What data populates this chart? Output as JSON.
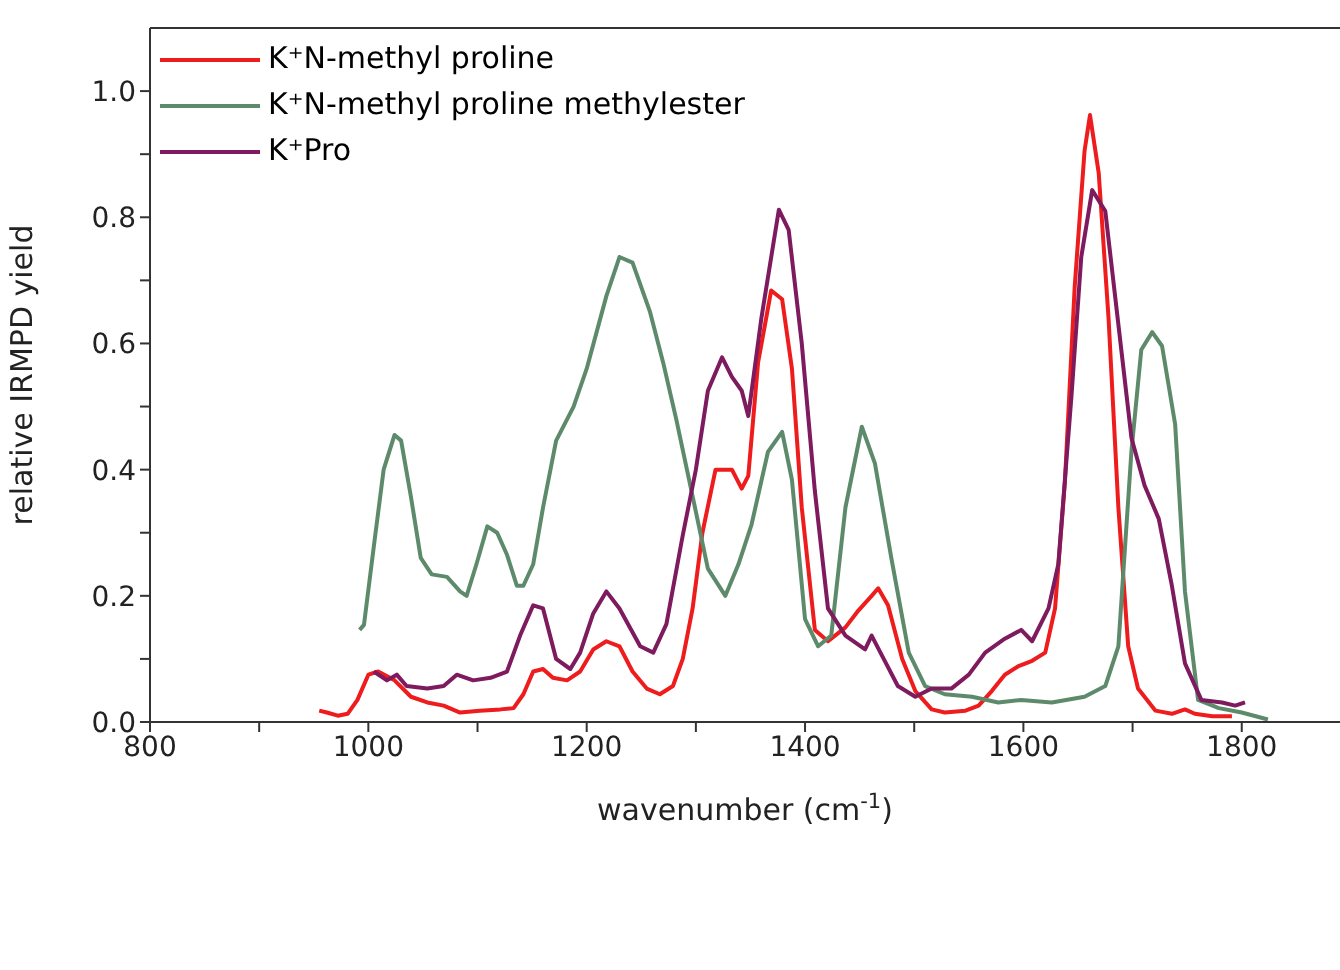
{
  "chart_data": {
    "type": "line",
    "xlabel": "wavenumber (cm$^{-1}$)",
    "ylabel": "relative IRMPD yield",
    "xlim": [
      800,
      1890
    ],
    "ylim": [
      0,
      1.1
    ],
    "xticks": [
      800,
      {
        "value": 900,
        "label": null
      },
      1000,
      {
        "value": 1100,
        "label": null
      },
      1200,
      {
        "value": 1300,
        "label": null
      },
      1400,
      {
        "value": 1500,
        "label": null
      },
      1600,
      {
        "value": 1700,
        "label": null
      },
      1800
    ],
    "yticks": [
      {
        "value": 0,
        "label": "0.0"
      },
      {
        "value": 0.1,
        "label": null
      },
      {
        "value": 0.2,
        "label": "0.2"
      },
      {
        "value": 0.3,
        "label": null
      },
      {
        "value": 0.4,
        "label": "0.4"
      },
      {
        "value": 0.5,
        "label": null
      },
      {
        "value": 0.6,
        "label": "0.6"
      },
      {
        "value": 0.7,
        "label": null
      },
      {
        "value": 0.8,
        "label": "0.8"
      },
      {
        "value": 0.9,
        "label": null
      },
      {
        "value": 1.0,
        "label": "1.0"
      }
    ],
    "grid": false,
    "legend": "top left",
    "marker": "none",
    "line_style": "solid",
    "series": [
      {
        "name": "K⁺N-methyl proline",
        "color": "#ee1c1c",
        "x": [
          955,
          962,
          972,
          981,
          990,
          1000,
          1009,
          1024,
          1039,
          1054,
          1069,
          1084,
          1102,
          1121,
          1133,
          1142,
          1151,
          1160,
          1169,
          1182,
          1194,
          1206,
          1218,
          1230,
          1242,
          1255,
          1267,
          1279,
          1288,
          1297,
          1306,
          1318,
          1333,
          1342,
          1348,
          1357,
          1369,
          1379,
          1388,
          1397,
          1409,
          1421,
          1437,
          1449,
          1461,
          1467,
          1476,
          1489,
          1501,
          1516,
          1528,
          1547,
          1559,
          1571,
          1583,
          1595,
          1608,
          1620,
          1629,
          1638,
          1647,
          1656,
          1661,
          1669,
          1678,
          1687,
          1696,
          1705,
          1721,
          1736,
          1748,
          1757,
          1773,
          1791
        ],
        "values": [
          0.018,
          0.015,
          0.01,
          0.013,
          0.035,
          0.075,
          0.08,
          0.066,
          0.04,
          0.031,
          0.026,
          0.015,
          0.018,
          0.02,
          0.022,
          0.044,
          0.08,
          0.084,
          0.07,
          0.066,
          0.08,
          0.115,
          0.128,
          0.12,
          0.08,
          0.053,
          0.044,
          0.057,
          0.1,
          0.18,
          0.3,
          0.4,
          0.4,
          0.37,
          0.39,
          0.57,
          0.684,
          0.67,
          0.56,
          0.34,
          0.146,
          0.128,
          0.15,
          0.177,
          0.2,
          0.212,
          0.185,
          0.1,
          0.049,
          0.02,
          0.015,
          0.018,
          0.026,
          0.049,
          0.075,
          0.088,
          0.097,
          0.11,
          0.18,
          0.38,
          0.69,
          0.905,
          0.962,
          0.87,
          0.64,
          0.34,
          0.12,
          0.053,
          0.018,
          0.013,
          0.02,
          0.013,
          0.009,
          0.009
        ]
      },
      {
        "name": "K⁺N-methyl proline methylester",
        "color": "#5e8a6c",
        "x": [
          992,
          996,
          1005,
          1014,
          1024,
          1030,
          1039,
          1048,
          1058,
          1072,
          1084,
          1090,
          1099,
          1109,
          1118,
          1127,
          1136,
          1142,
          1151,
          1160,
          1172,
          1188,
          1200,
          1218,
          1230,
          1242,
          1258,
          1270,
          1282,
          1296,
          1311,
          1327,
          1339,
          1351,
          1366,
          1379,
          1388,
          1400,
          1412,
          1424,
          1437,
          1452,
          1464,
          1479,
          1495,
          1510,
          1528,
          1553,
          1577,
          1598,
          1626,
          1656,
          1675,
          1687,
          1699,
          1708,
          1718,
          1727,
          1739,
          1748,
          1760,
          1779,
          1800,
          1824
        ],
        "values": [
          0.146,
          0.154,
          0.278,
          0.4,
          0.455,
          0.446,
          0.357,
          0.26,
          0.234,
          0.23,
          0.207,
          0.2,
          0.25,
          0.31,
          0.3,
          0.265,
          0.216,
          0.216,
          0.25,
          0.34,
          0.446,
          0.5,
          0.56,
          0.675,
          0.737,
          0.728,
          0.65,
          0.57,
          0.48,
          0.366,
          0.243,
          0.2,
          0.25,
          0.313,
          0.428,
          0.46,
          0.384,
          0.163,
          0.12,
          0.137,
          0.34,
          0.468,
          0.41,
          0.26,
          0.11,
          0.057,
          0.044,
          0.04,
          0.031,
          0.035,
          0.031,
          0.04,
          0.057,
          0.12,
          0.43,
          0.59,
          0.618,
          0.596,
          0.472,
          0.207,
          0.035,
          0.022,
          0.015,
          0.004
        ]
      },
      {
        "name": "K⁺Pro",
        "color": "#7e1a5e",
        "x": [
          1005,
          1017,
          1026,
          1035,
          1054,
          1069,
          1081,
          1096,
          1112,
          1127,
          1139,
          1151,
          1160,
          1172,
          1185,
          1194,
          1206,
          1218,
          1230,
          1249,
          1261,
          1273,
          1288,
          1300,
          1311,
          1324,
          1333,
          1342,
          1348,
          1360,
          1376,
          1385,
          1397,
          1409,
          1421,
          1437,
          1455,
          1461,
          1473,
          1485,
          1501,
          1516,
          1534,
          1550,
          1565,
          1583,
          1598,
          1608,
          1623,
          1632,
          1644,
          1653,
          1663,
          1675,
          1687,
          1699,
          1711,
          1724,
          1736,
          1748,
          1763,
          1782,
          1794,
          1803
        ],
        "values": [
          0.08,
          0.066,
          0.075,
          0.057,
          0.053,
          0.057,
          0.075,
          0.066,
          0.07,
          0.08,
          0.137,
          0.185,
          0.18,
          0.1,
          0.084,
          0.11,
          0.172,
          0.207,
          0.18,
          0.12,
          0.11,
          0.155,
          0.296,
          0.4,
          0.525,
          0.578,
          0.547,
          0.525,
          0.485,
          0.64,
          0.812,
          0.78,
          0.6,
          0.366,
          0.18,
          0.137,
          0.115,
          0.137,
          0.097,
          0.057,
          0.04,
          0.053,
          0.053,
          0.075,
          0.11,
          0.132,
          0.146,
          0.128,
          0.18,
          0.25,
          0.516,
          0.737,
          0.843,
          0.81,
          0.63,
          0.45,
          0.375,
          0.322,
          0.216,
          0.093,
          0.035,
          0.031,
          0.026,
          0.031
        ]
      }
    ]
  }
}
